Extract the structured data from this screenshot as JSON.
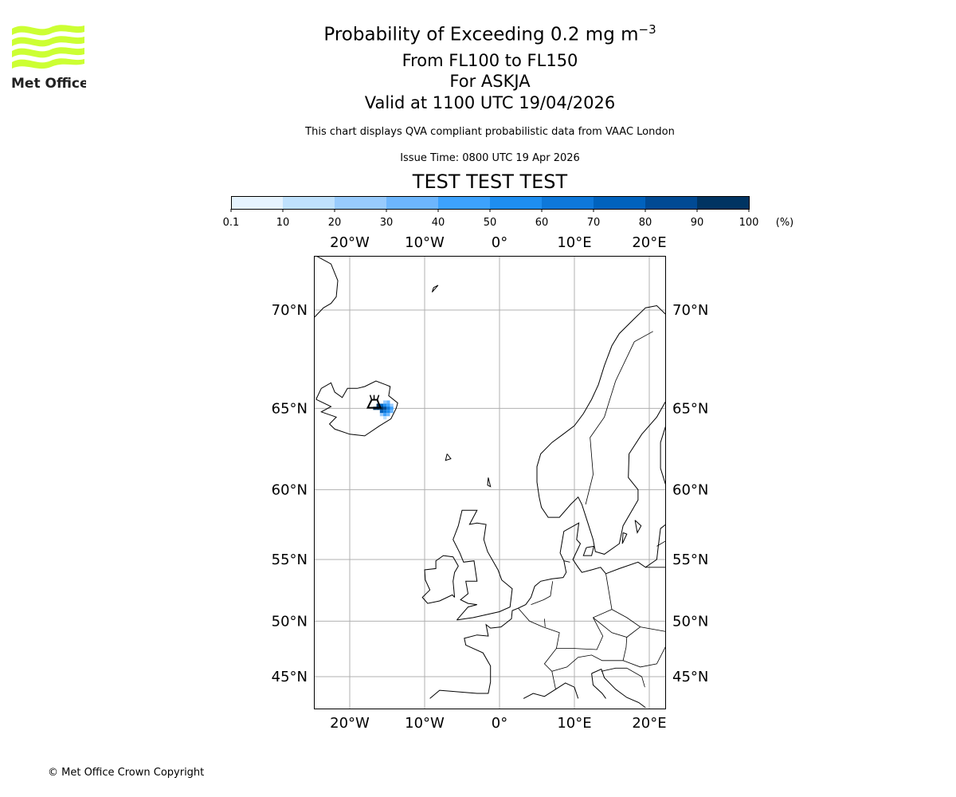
{
  "logo": {
    "text": "Met Office",
    "color": "#ccff33"
  },
  "header": {
    "title_main": "Probability of Exceeding 0.2 mg m",
    "title_sup": "−3",
    "levels": "From FL100 to FL150",
    "volcano": "For ASKJA",
    "valid": "Valid at 1100 UTC 19/04/2026",
    "description": "This chart displays QVA compliant probabilistic data from VAAC London",
    "issue_time": "Issue Time: 0800 UTC 19 Apr 2026",
    "test_banner": "TEST TEST TEST",
    "test_color": "#e00000"
  },
  "chart_data": {
    "type": "heatmap",
    "title": "Probability of Exceeding 0.2 mg m-3",
    "colorbar": {
      "ticks": [
        "0.1",
        "10",
        "20",
        "30",
        "40",
        "50",
        "60",
        "70",
        "80",
        "90",
        "100"
      ],
      "unit": "(%)",
      "colors": [
        "#e6f3fe",
        "#bfe1fd",
        "#98cbfd",
        "#6db6fd",
        "#3da2fd",
        "#1e8ef0",
        "#0e78da",
        "#0062bd",
        "#004a94",
        "#003462"
      ]
    },
    "lon_ticks_top": [
      "20°W",
      "10°W",
      "0°",
      "10°E",
      "20°E"
    ],
    "lon_ticks_bottom": [
      "20°W",
      "10°W",
      "0°",
      "10°E",
      "20°E"
    ],
    "lon_values": [
      -20,
      -10,
      0,
      10,
      20
    ],
    "lat_ticks": [
      "70°N",
      "65°N",
      "60°N",
      "55°N",
      "50°N",
      "45°N"
    ],
    "lat_values": [
      70,
      65,
      60,
      55,
      50,
      45
    ],
    "extent": {
      "lon": [
        -24.8,
        22.2
      ],
      "lat": [
        42.9,
        72.4
      ]
    },
    "projection": "mercator",
    "grid": true,
    "volcano": {
      "name": "ASKJA",
      "lon": -16.75,
      "lat": 65.03
    },
    "plume_cells": [
      [
        -15.3,
        65.35,
        20
      ],
      [
        -14.85,
        65.35,
        30
      ],
      [
        -16.2,
        65.17,
        90
      ],
      [
        -15.75,
        65.17,
        70
      ],
      [
        -15.3,
        65.17,
        50
      ],
      [
        -14.85,
        65.17,
        40
      ],
      [
        -14.4,
        65.17,
        20
      ],
      [
        -16.65,
        65.0,
        90
      ],
      [
        -16.2,
        65.0,
        100
      ],
      [
        -15.75,
        65.0,
        90
      ],
      [
        -15.3,
        65.0,
        80
      ],
      [
        -14.85,
        65.0,
        60
      ],
      [
        -14.4,
        65.0,
        40
      ],
      [
        -15.75,
        64.82,
        70
      ],
      [
        -15.3,
        64.82,
        60
      ],
      [
        -14.85,
        64.82,
        50
      ],
      [
        -14.4,
        64.82,
        30
      ],
      [
        -15.75,
        64.64,
        20
      ],
      [
        -15.3,
        64.64,
        40
      ],
      [
        -14.85,
        64.64,
        30
      ],
      [
        -15.3,
        64.46,
        10
      ]
    ]
  },
  "footer": {
    "copyright": "© Met Office Crown Copyright"
  }
}
